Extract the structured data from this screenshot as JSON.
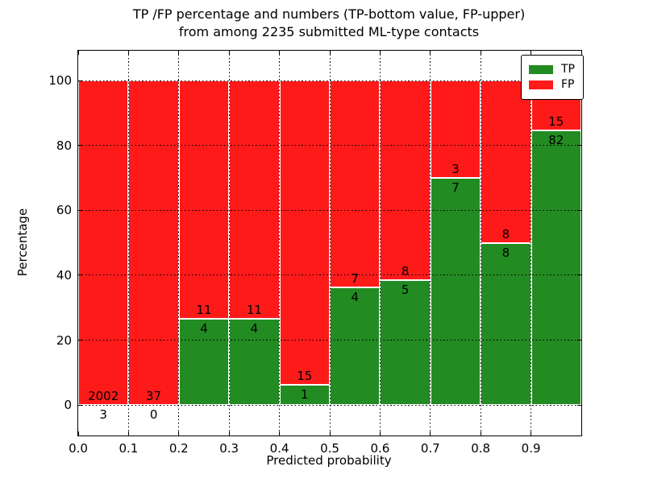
{
  "title": {
    "line1": "TP /FP percentage and numbers (TP-bottom value, FP-upper)",
    "line2": "from among 2235 submitted ML-type contacts"
  },
  "axes": {
    "xlabel": "Predicted probability",
    "ylabel": "Percentage",
    "xticks": [
      "0.0",
      "0.1",
      "0.2",
      "0.3",
      "0.4",
      "0.5",
      "0.6",
      "0.7",
      "0.8",
      "0.9"
    ],
    "yticks": [
      "0",
      "20",
      "40",
      "60",
      "80",
      "100"
    ],
    "xlim": [
      0.0,
      1.0
    ],
    "ylim": [
      -9.4,
      109.2
    ],
    "grid": "dotted black, on top of bars"
  },
  "legend": {
    "position": "upper right",
    "items": [
      {
        "label": "TP",
        "color": "#228b22"
      },
      {
        "label": "FP",
        "color": "#ff1a1a"
      }
    ]
  },
  "chart_data": {
    "type": "bar",
    "stacked": true,
    "normalized_to": 100,
    "total_contacts": 2235,
    "bin_edges": [
      0.0,
      0.1,
      0.2,
      0.3,
      0.4,
      0.5,
      0.6,
      0.7,
      0.8,
      0.9,
      1.0
    ],
    "series": [
      {
        "name": "TP",
        "color": "#228b22",
        "counts": [
          3,
          0,
          4,
          4,
          1,
          4,
          5,
          7,
          8,
          82
        ],
        "percent": [
          0.15,
          0.0,
          26.67,
          26.67,
          6.25,
          36.36,
          38.46,
          70.0,
          50.0,
          84.54
        ]
      },
      {
        "name": "FP",
        "color": "#ff1a1a",
        "counts": [
          2002,
          37,
          11,
          11,
          15,
          7,
          8,
          3,
          8,
          15
        ],
        "percent": [
          99.85,
          100.0,
          73.33,
          73.33,
          93.75,
          63.64,
          61.54,
          30.0,
          50.0,
          15.46
        ]
      }
    ]
  }
}
